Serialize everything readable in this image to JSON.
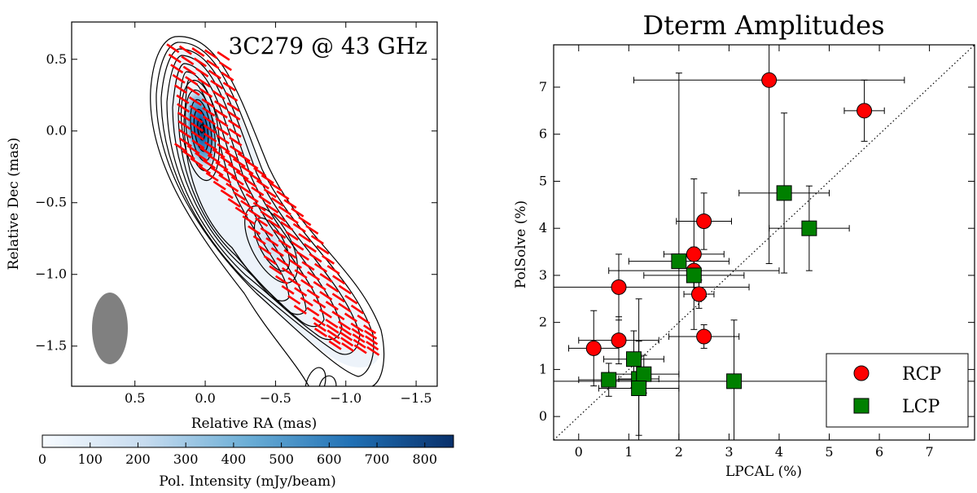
{
  "chart_data": [
    {
      "type": "contour",
      "annotation": "3C279 @ 43 GHz",
      "xlabel": "Relative RA (mas)",
      "ylabel": "Relative Dec (mas)",
      "xlim": [
        0.95,
        -1.65
      ],
      "ylim": [
        -1.78,
        0.76
      ],
      "x_ticks": [
        0.5,
        0.0,
        -0.5,
        -1.0,
        -1.5
      ],
      "x_tick_labels": [
        "0.5",
        "0.0",
        "−0.5",
        "−1.0",
        "−1.5"
      ],
      "y_ticks": [
        0.5,
        0.0,
        -0.5,
        -1.0,
        -1.5
      ],
      "y_tick_labels": [
        "0.5",
        "0.0",
        "−0.5",
        "−1.0",
        "−1.5"
      ],
      "beam": {
        "x": 0.58,
        "y": -1.35,
        "major": 0.44,
        "minor": 0.22
      },
      "components": [
        {
          "x": 0.02,
          "y": 0.02,
          "peak_mjy": 850
        },
        {
          "x": -0.55,
          "y": -0.72,
          "peak_mjy": 220
        }
      ],
      "colorbar": {
        "label": "Pol. Intensity (mJy/beam)",
        "range": [
          0,
          860
        ],
        "ticks": [
          0,
          100,
          200,
          300,
          400,
          500,
          600,
          700,
          800
        ],
        "tick_labels": [
          "0",
          "100",
          "200",
          "300",
          "400",
          "500",
          "600",
          "700",
          "800"
        ],
        "colors": [
          "#f7fbff",
          "#c6dbef",
          "#6baed6",
          "#2171b5",
          "#08306b"
        ]
      },
      "contour_color": "#000000",
      "evpa_color": "#ff0000"
    },
    {
      "type": "scatter",
      "title": "Dterm Amplitudes",
      "xlabel": "LPCAL (%)",
      "ylabel": "PolSolve (%)",
      "xlim": [
        -0.5,
        7.9
      ],
      "ylim": [
        -0.5,
        7.9
      ],
      "x_ticks": [
        0,
        1,
        2,
        3,
        4,
        5,
        6,
        7
      ],
      "x_tick_labels": [
        "0",
        "1",
        "2",
        "3",
        "4",
        "5",
        "6",
        "7"
      ],
      "y_ticks": [
        0,
        1,
        2,
        3,
        4,
        5,
        6,
        7
      ],
      "y_tick_labels": [
        "0",
        "1",
        "2",
        "3",
        "4",
        "5",
        "6",
        "7"
      ],
      "diagonal": true,
      "legend_position": "lower-right",
      "series": [
        {
          "name": "RCP",
          "marker": "circle",
          "color": "#ff0000",
          "points": [
            {
              "x": 3.8,
              "y": 7.15,
              "xerr": 2.7,
              "yerr": 3.9
            },
            {
              "x": 5.7,
              "y": 6.5,
              "xerr": 0.4,
              "yerr": 0.65
            },
            {
              "x": 2.5,
              "y": 4.15,
              "xerr": 0.55,
              "yerr": 0.6
            },
            {
              "x": 2.3,
              "y": 3.45,
              "xerr": 0.6,
              "yerr": 1.6
            },
            {
              "x": 2.3,
              "y": 3.1,
              "xerr": 1.7,
              "yerr": 0.5
            },
            {
              "x": 0.8,
              "y": 2.75,
              "xerr": 2.6,
              "yerr": 0.7
            },
            {
              "x": 2.4,
              "y": 2.6,
              "xerr": 0.3,
              "yerr": 0.3
            },
            {
              "x": 0.8,
              "y": 1.62,
              "xerr": 0.8,
              "yerr": 0.5
            },
            {
              "x": 0.3,
              "y": 1.45,
              "xerr": 0.5,
              "yerr": 0.8
            },
            {
              "x": 2.5,
              "y": 1.7,
              "xerr": 0.7,
              "yerr": 0.25
            }
          ]
        },
        {
          "name": "LCP",
          "marker": "square",
          "color": "#008000",
          "points": [
            {
              "x": 4.1,
              "y": 4.75,
              "xerr": 0.9,
              "yerr": 1.7
            },
            {
              "x": 4.6,
              "y": 4.0,
              "xerr": 0.8,
              "yerr": 0.9
            },
            {
              "x": 2.0,
              "y": 3.3,
              "xerr": 1.0,
              "yerr": 4.0
            },
            {
              "x": 2.3,
              "y": 3.0,
              "xerr": 1.0,
              "yerr": 0.4
            },
            {
              "x": 1.1,
              "y": 1.22,
              "xerr": 0.6,
              "yerr": 0.6
            },
            {
              "x": 0.6,
              "y": 0.78,
              "xerr": 0.6,
              "yerr": 0.35
            },
            {
              "x": 1.2,
              "y": 0.8,
              "xerr": 0.4,
              "yerr": 1.7
            },
            {
              "x": 1.3,
              "y": 0.9,
              "xerr": 0.7,
              "yerr": 0.4
            },
            {
              "x": 1.2,
              "y": 0.6,
              "xerr": 0.8,
              "yerr": 1.0
            },
            {
              "x": 3.1,
              "y": 0.75,
              "xerr": 5.0,
              "yerr": 1.3
            }
          ]
        }
      ]
    }
  ]
}
